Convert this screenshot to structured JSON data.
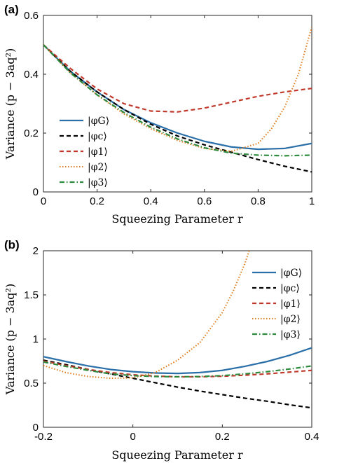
{
  "chart_data": [
    {
      "type": "line",
      "panel_label": "(a)",
      "xlabel": "Squeezing Parameter r",
      "ylabel": "Variance (p − 3aq²)",
      "xlim": [
        0,
        1
      ],
      "ylim": [
        0,
        0.6
      ],
      "xticks": [
        "0",
        "0.2",
        "0.4",
        "0.6",
        "0.8",
        "1"
      ],
      "yticks": [
        "0",
        "0.2",
        "0.4",
        "0.6"
      ],
      "grid": false,
      "legend_position": "lower-left",
      "series": [
        {
          "name": "|φG⟩",
          "color": "#2a6fa8",
          "style": "solid",
          "x": [
            0,
            0.1,
            0.2,
            0.3,
            0.4,
            0.5,
            0.6,
            0.7,
            0.8,
            0.9,
            1.0
          ],
          "y": [
            0.5,
            0.41,
            0.34,
            0.28,
            0.235,
            0.2,
            0.172,
            0.153,
            0.145,
            0.148,
            0.165
          ]
        },
        {
          "name": "|φc⟩",
          "color": "#000000",
          "style": "dashed",
          "x": [
            0,
            0.1,
            0.2,
            0.3,
            0.4,
            0.5,
            0.6,
            0.7,
            0.8,
            0.9,
            1.0
          ],
          "y": [
            0.5,
            0.41,
            0.34,
            0.28,
            0.23,
            0.19,
            0.16,
            0.135,
            0.11,
            0.087,
            0.068
          ]
        },
        {
          "name": "|φ1⟩",
          "color": "#c0392b",
          "style": "dashed",
          "x": [
            0,
            0.1,
            0.2,
            0.3,
            0.4,
            0.5,
            0.6,
            0.7,
            0.8,
            0.9,
            1.0
          ],
          "y": [
            0.5,
            0.42,
            0.35,
            0.3,
            0.275,
            0.272,
            0.285,
            0.305,
            0.325,
            0.34,
            0.352
          ]
        },
        {
          "name": "|φ2⟩",
          "color": "#e07b19",
          "style": "dotted",
          "x": [
            0,
            0.1,
            0.2,
            0.3,
            0.4,
            0.5,
            0.6,
            0.7,
            0.8,
            0.85,
            0.9,
            0.95,
            1.0
          ],
          "y": [
            0.5,
            0.405,
            0.33,
            0.265,
            0.215,
            0.175,
            0.148,
            0.138,
            0.165,
            0.215,
            0.29,
            0.4,
            0.56
          ]
        },
        {
          "name": "|φ3⟩",
          "color": "#2e8b3e",
          "style": "dashdot",
          "x": [
            0,
            0.1,
            0.2,
            0.3,
            0.4,
            0.5,
            0.6,
            0.7,
            0.8,
            0.9,
            1.0
          ],
          "y": [
            0.5,
            0.405,
            0.33,
            0.27,
            0.22,
            0.18,
            0.15,
            0.132,
            0.125,
            0.123,
            0.125
          ]
        }
      ]
    },
    {
      "type": "line",
      "panel_label": "(b)",
      "xlabel": "Squeezing Parameter r",
      "ylabel": "Variance (p − 3aq²)",
      "xlim": [
        -0.2,
        0.4
      ],
      "ylim": [
        0,
        2
      ],
      "xticks": [
        "-0.2",
        "0",
        "0.2",
        "0.4"
      ],
      "yticks": [
        "0",
        "0.5",
        "1",
        "1.5",
        "2"
      ],
      "grid": false,
      "legend_position": "top-right",
      "series": [
        {
          "name": "|φG⟩",
          "color": "#2a6fa8",
          "style": "solid",
          "x": [
            -0.2,
            -0.15,
            -0.1,
            -0.05,
            0,
            0.05,
            0.1,
            0.15,
            0.2,
            0.25,
            0.3,
            0.35,
            0.4
          ],
          "y": [
            0.8,
            0.745,
            0.695,
            0.655,
            0.63,
            0.615,
            0.61,
            0.62,
            0.645,
            0.69,
            0.745,
            0.815,
            0.9
          ]
        },
        {
          "name": "|φc⟩",
          "color": "#000000",
          "style": "dashed",
          "x": [
            -0.2,
            -0.15,
            -0.1,
            -0.05,
            0,
            0.05,
            0.1,
            0.15,
            0.2,
            0.25,
            0.3,
            0.35,
            0.4
          ],
          "y": [
            0.76,
            0.71,
            0.655,
            0.605,
            0.555,
            0.505,
            0.455,
            0.41,
            0.37,
            0.33,
            0.295,
            0.255,
            0.22
          ]
        },
        {
          "name": "|φ1⟩",
          "color": "#c0392b",
          "style": "dashed",
          "x": [
            -0.2,
            -0.15,
            -0.1,
            -0.05,
            0,
            0.05,
            0.1,
            0.15,
            0.2,
            0.25,
            0.3,
            0.35,
            0.4
          ],
          "y": [
            0.75,
            0.7,
            0.655,
            0.62,
            0.595,
            0.58,
            0.572,
            0.572,
            0.578,
            0.59,
            0.605,
            0.625,
            0.645
          ]
        },
        {
          "name": "|φ2⟩",
          "color": "#e07b19",
          "style": "dotted",
          "x": [
            -0.2,
            -0.15,
            -0.1,
            -0.05,
            0,
            0.05,
            0.1,
            0.15,
            0.2,
            0.225,
            0.25,
            0.26
          ],
          "y": [
            0.7,
            0.62,
            0.575,
            0.555,
            0.56,
            0.62,
            0.76,
            0.96,
            1.3,
            1.55,
            1.85,
            2.0
          ]
        },
        {
          "name": "|φ3⟩",
          "color": "#2e8b3e",
          "style": "dashdot",
          "x": [
            -0.2,
            -0.15,
            -0.1,
            -0.05,
            0,
            0.05,
            0.1,
            0.15,
            0.2,
            0.25,
            0.3,
            0.35,
            0.4
          ],
          "y": [
            0.74,
            0.69,
            0.645,
            0.605,
            0.585,
            0.575,
            0.572,
            0.575,
            0.585,
            0.605,
            0.63,
            0.66,
            0.695
          ]
        }
      ]
    }
  ]
}
